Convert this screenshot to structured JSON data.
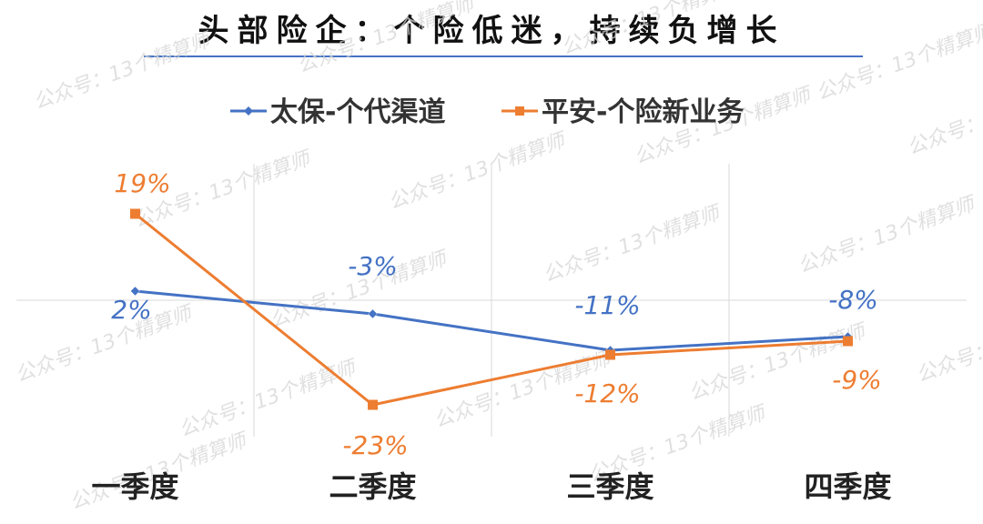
{
  "title": "头部险企：个险低迷，持续负增长",
  "watermark": "公众号：13个精算师",
  "chart_data": {
    "type": "line",
    "categories": [
      "一季度",
      "二季度",
      "三季度",
      "四季度"
    ],
    "series": [
      {
        "name": "太保-个代渠道",
        "values": [
          2,
          -3,
          -11,
          -8
        ],
        "labels": [
          "2%",
          "-3%",
          "-11%",
          "-8%"
        ],
        "color": "#4472C4",
        "marker": "diamond"
      },
      {
        "name": "平安-个险新业务",
        "values": [
          19,
          -23,
          -12,
          -9
        ],
        "labels": [
          "19%",
          "-23%",
          "-12%",
          "-9%"
        ],
        "color": "#ED7D31",
        "marker": "square"
      }
    ],
    "ylim": [
      -30,
      30
    ],
    "grid": "vertical",
    "legend": "top-center"
  }
}
